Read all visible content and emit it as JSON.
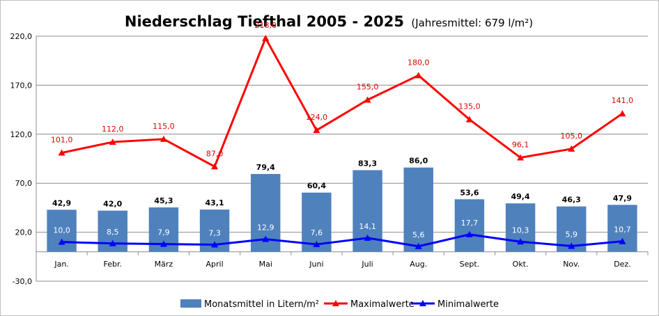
{
  "chart_data": {
    "type": "bar",
    "title": "Niederschlag Tiefthal 2005 - 2025",
    "subtitle": "(Jahresmittel: 679 l/m²)",
    "categories": [
      "Jan.",
      "Febr.",
      "März",
      "April",
      "Mai",
      "Juni",
      "Juli",
      "Aug.",
      "Sept.",
      "Okt.",
      "Nov.",
      "Dez."
    ],
    "ylim": [
      -30,
      220
    ],
    "yticks": [
      -30,
      20,
      70,
      120,
      170,
      220
    ],
    "ytick_labels": [
      "-30,0",
      "20,0",
      "70,0",
      "120,0",
      "170,0",
      "220,0"
    ],
    "grid": true,
    "legend_position": "bottom",
    "series": [
      {
        "name": "Monatsmittel in Litern/m²",
        "kind": "bar",
        "color": "#4f81bd",
        "values": [
          42.9,
          42.0,
          45.3,
          43.1,
          79.4,
          60.4,
          83.3,
          86.0,
          53.6,
          49.4,
          46.3,
          47.9
        ],
        "labels": [
          "42,9",
          "42,0",
          "45,3",
          "43,1",
          "79,4",
          "60,4",
          "83,3",
          "86,0",
          "53,6",
          "49,4",
          "46,3",
          "47,9"
        ]
      },
      {
        "name": "Maximalwerte",
        "kind": "line",
        "color": "#ff0000",
        "values": [
          101.0,
          112.0,
          115.0,
          87.0,
          218.0,
          124.0,
          155.0,
          180.0,
          135.0,
          96.1,
          105.0,
          141.0
        ],
        "labels": [
          "101,0",
          "112,0",
          "115,0",
          "87,0",
          "218,0",
          "124,0",
          "155,0",
          "180,0",
          "135,0",
          "96,1",
          "105,0",
          "141,0"
        ]
      },
      {
        "name": "Minimalwerte",
        "kind": "line",
        "color": "#0000ff",
        "values": [
          10.0,
          8.5,
          7.9,
          7.3,
          12.9,
          7.6,
          14.1,
          5.6,
          17.7,
          10.3,
          5.9,
          10.7
        ],
        "labels": [
          "10,0",
          "8,5",
          "7,9",
          "7,3",
          "12,9",
          "7,6",
          "14,1",
          "5,6",
          "17,7",
          "10,3",
          "5,9",
          "10,7"
        ]
      }
    ]
  }
}
